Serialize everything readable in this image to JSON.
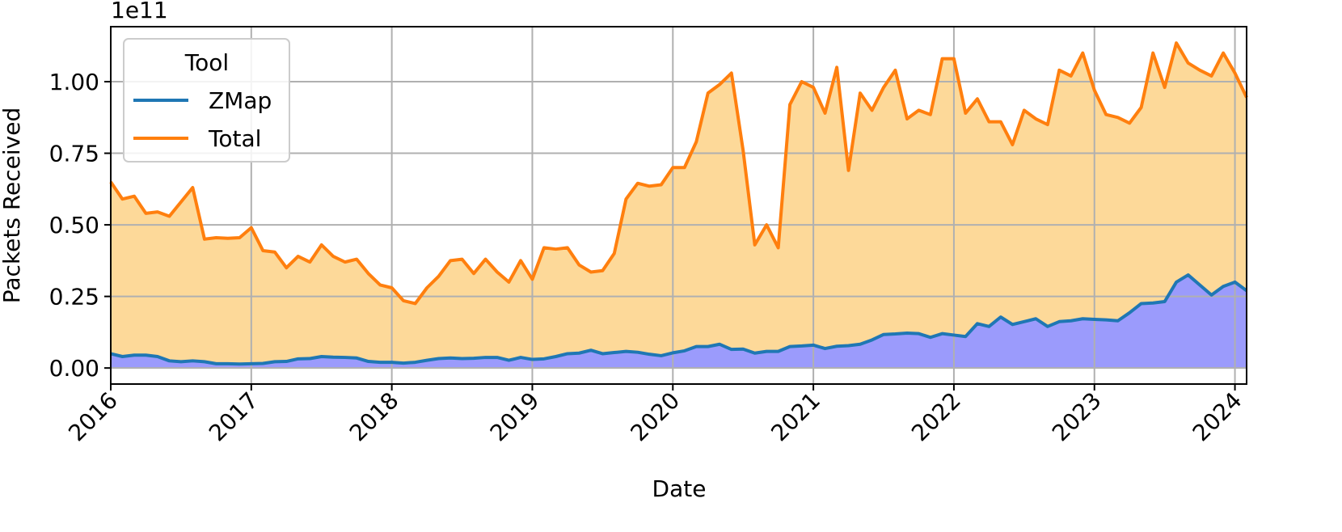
{
  "chart_data": {
    "type": "area-line",
    "x_label": "Date",
    "y_label": "Packets Received",
    "y_offset_text": "1e11",
    "legend_title": "Tool",
    "legend": "upper left",
    "grid": true,
    "xlim": [
      2016,
      2024.083
    ],
    "xticks": [
      2016,
      2017,
      2018,
      2019,
      2020,
      2021,
      2022,
      2023,
      2024
    ],
    "ylim": [
      -0.056,
      1.192
    ],
    "yticks": [
      {
        "value": 0,
        "label": "0.00"
      },
      {
        "value": 0.25,
        "label": "0.25"
      },
      {
        "value": 0.5,
        "label": "0.50"
      },
      {
        "value": 0.75,
        "label": "0.75"
      },
      {
        "value": 1,
        "label": "1.00"
      }
    ],
    "x": [
      2016,
      2016.083,
      2016.167,
      2016.25,
      2016.333,
      2016.417,
      2016.5,
      2016.583,
      2016.667,
      2016.75,
      2016.833,
      2016.917,
      2017,
      2017.083,
      2017.167,
      2017.25,
      2017.333,
      2017.417,
      2017.5,
      2017.583,
      2017.667,
      2017.75,
      2017.833,
      2017.917,
      2018,
      2018.083,
      2018.167,
      2018.25,
      2018.333,
      2018.417,
      2018.5,
      2018.583,
      2018.667,
      2018.75,
      2018.833,
      2018.917,
      2019,
      2019.083,
      2019.167,
      2019.25,
      2019.333,
      2019.417,
      2019.5,
      2019.583,
      2019.667,
      2019.75,
      2019.833,
      2019.917,
      2020,
      2020.083,
      2020.167,
      2020.25,
      2020.333,
      2020.417,
      2020.5,
      2020.583,
      2020.667,
      2020.75,
      2020.833,
      2020.917,
      2021,
      2021.083,
      2021.167,
      2021.25,
      2021.333,
      2021.417,
      2021.5,
      2021.583,
      2021.667,
      2021.75,
      2021.833,
      2021.917,
      2022,
      2022.083,
      2022.167,
      2022.25,
      2022.333,
      2022.417,
      2022.5,
      2022.583,
      2022.667,
      2022.75,
      2022.833,
      2022.917,
      2023,
      2023.083,
      2023.167,
      2023.25,
      2023.333,
      2023.417,
      2023.5,
      2023.583,
      2023.667,
      2023.75,
      2023.833,
      2023.917,
      2024,
      2024.083
    ],
    "series": [
      {
        "name": "ZMap",
        "color": "#1f77b4",
        "fill": "#9b9bfc",
        "values": [
          0.05,
          0.04,
          0.045,
          0.045,
          0.04,
          0.025,
          0.022,
          0.025,
          0.022,
          0.015,
          0.015,
          0.014,
          0.015,
          0.016,
          0.022,
          0.023,
          0.032,
          0.033,
          0.04,
          0.038,
          0.037,
          0.035,
          0.023,
          0.02,
          0.02,
          0.017,
          0.02,
          0.027,
          0.033,
          0.035,
          0.033,
          0.034,
          0.037,
          0.037,
          0.027,
          0.037,
          0.03,
          0.032,
          0.04,
          0.05,
          0.052,
          0.062,
          0.05,
          0.054,
          0.058,
          0.055,
          0.048,
          0.043,
          0.053,
          0.06,
          0.075,
          0.075,
          0.083,
          0.065,
          0.066,
          0.052,
          0.058,
          0.058,
          0.075,
          0.077,
          0.08,
          0.068,
          0.076,
          0.078,
          0.083,
          0.098,
          0.117,
          0.119,
          0.122,
          0.12,
          0.107,
          0.12,
          0.115,
          0.11,
          0.155,
          0.145,
          0.178,
          0.152,
          0.162,
          0.172,
          0.145,
          0.162,
          0.165,
          0.172,
          0.17,
          0.168,
          0.165,
          0.193,
          0.225,
          0.227,
          0.232,
          0.3,
          0.325,
          0.29,
          0.255,
          0.285,
          0.3,
          0.27
        ]
      },
      {
        "name": "Total",
        "color": "#ff7f0e",
        "fill": "#fdd999",
        "values": [
          0.65,
          0.59,
          0.6,
          0.54,
          0.545,
          0.53,
          0.58,
          0.63,
          0.45,
          0.455,
          0.453,
          0.455,
          0.49,
          0.41,
          0.405,
          0.35,
          0.39,
          0.37,
          0.43,
          0.39,
          0.37,
          0.38,
          0.33,
          0.29,
          0.28,
          0.235,
          0.225,
          0.28,
          0.32,
          0.375,
          0.38,
          0.33,
          0.38,
          0.335,
          0.3,
          0.375,
          0.31,
          0.42,
          0.415,
          0.42,
          0.36,
          0.335,
          0.34,
          0.4,
          0.59,
          0.645,
          0.635,
          0.64,
          0.7,
          0.7,
          0.79,
          0.96,
          0.99,
          1.03,
          0.76,
          0.43,
          0.5,
          0.42,
          0.92,
          1.0,
          0.98,
          0.89,
          1.05,
          0.69,
          0.96,
          0.9,
          0.98,
          1.04,
          0.87,
          0.9,
          0.885,
          1.08,
          1.08,
          0.89,
          0.94,
          0.86,
          0.86,
          0.78,
          0.9,
          0.87,
          0.85,
          1.04,
          1.02,
          1.1,
          0.97,
          0.885,
          0.875,
          0.855,
          0.91,
          1.1,
          0.98,
          1.135,
          1.065,
          1.04,
          1.02,
          1.1,
          1.03,
          0.945
        ]
      }
    ]
  }
}
